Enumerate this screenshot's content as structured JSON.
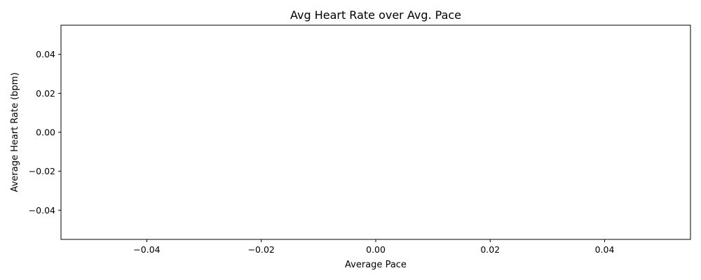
{
  "chart_data": {
    "type": "scatter",
    "title": "Avg Heart Rate over Avg. Pace",
    "xlabel": "Average Pace",
    "ylabel": "Average Heart Rate (bpm)",
    "x": [],
    "y": [],
    "xlim": [
      -0.055,
      0.055
    ],
    "ylim": [
      -0.055,
      0.055
    ],
    "x_ticks": [
      -0.04,
      -0.02,
      0.0,
      0.02,
      0.04
    ],
    "x_tick_labels": [
      "−0.04",
      "−0.02",
      "0.00",
      "0.02",
      "0.04"
    ],
    "y_ticks": [
      -0.04,
      -0.02,
      0.0,
      0.02,
      0.04
    ],
    "y_tick_labels": [
      "−0.04",
      "−0.02",
      "0.00",
      "0.02",
      "0.04"
    ],
    "grid": false,
    "legend": "none"
  }
}
